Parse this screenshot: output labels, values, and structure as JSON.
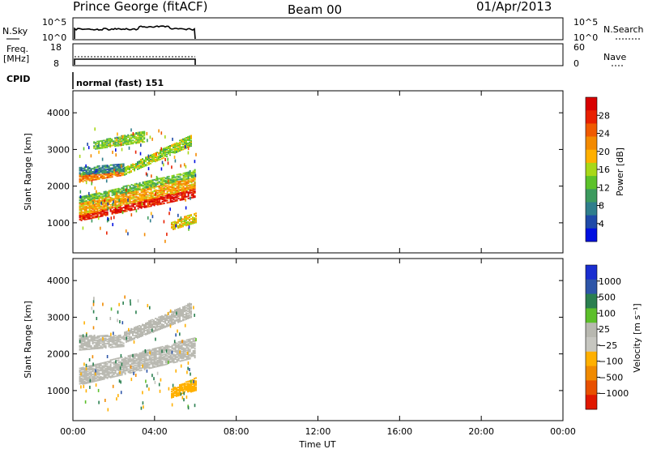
{
  "header": {
    "station": "Prince George (fitACF)",
    "beam": "Beam 00",
    "date": "01/Apr/2013"
  },
  "status_panel": {
    "left_labels": {
      "nsky": "N.Sky",
      "freq_top": "Freq.",
      "freq_unit": "[MHz]",
      "cpid": "CPID"
    },
    "right_labels": {
      "nsearch": "N.Search",
      "nave": "Nave"
    },
    "nsky_ticks": [
      "10^5",
      "10^0"
    ],
    "nsearch_ticks": [
      "10^5",
      "10^0"
    ],
    "freq_ticks": [
      "18",
      "8"
    ],
    "nave_ticks": [
      "60",
      "0"
    ],
    "cpid_text": "normal (fast) 151"
  },
  "colors": {
    "power_scale": [
      "#0010e0",
      "#1f4aa8",
      "#2f7e8c",
      "#3c9a5e",
      "#5cc22a",
      "#a8d818",
      "#ffb000",
      "#f38a00",
      "#f05a00",
      "#e82000",
      "#d80000"
    ],
    "velocity_scale": [
      "#1a2ed0",
      "#2d55a8",
      "#2a7f4f",
      "#5cbf2a",
      "#b8b8b0",
      "#c6c6c0",
      "#ffb000",
      "#f08a00",
      "#e85000",
      "#e01800"
    ],
    "bg": "#ffffff"
  },
  "chart_data": [
    {
      "type": "heatmap",
      "name": "power-panel",
      "xlabel": "",
      "ylabel": "Slant Range [km]",
      "y_ticks": [
        "1000",
        "2000",
        "3000",
        "4000"
      ],
      "y_tick_values": [
        1000,
        2000,
        3000,
        4000
      ],
      "ylim": [
        180,
        4600
      ],
      "xlim": [
        0,
        24
      ],
      "colorbar_label": "Power [dB]",
      "colorbar_ticks": [
        "4",
        "8",
        "12",
        "16",
        "20",
        "24",
        "28"
      ],
      "colorbar_range": [
        0,
        32
      ],
      "bands": [
        {
          "x0": 0.3,
          "x1": 6.0,
          "y0a": 1050,
          "y1a": 1200,
          "y0b": 1700,
          "y1b": 1950,
          "level": 29
        },
        {
          "x0": 0.3,
          "x1": 6.0,
          "y0a": 1200,
          "y1a": 1550,
          "y0b": 1950,
          "y1b": 2250,
          "level": 20
        },
        {
          "x0": 0.3,
          "x1": 6.0,
          "y0a": 1550,
          "y1a": 1700,
          "y0b": 2250,
          "y1b": 2450,
          "level": 13
        },
        {
          "x0": 0.3,
          "x1": 2.5,
          "y0a": 2100,
          "y1a": 2300,
          "y0b": 2300,
          "y1b": 2400,
          "level": 23
        },
        {
          "x0": 2.5,
          "x1": 5.8,
          "y0a": 2300,
          "y1a": 2500,
          "y0b": 3100,
          "y1b": 3400,
          "level": 15
        },
        {
          "x0": 0.3,
          "x1": 2.5,
          "y0a": 2300,
          "y1a": 2500,
          "y0b": 2400,
          "y1b": 2600,
          "level": 8
        },
        {
          "x0": 1.0,
          "x1": 3.5,
          "y0a": 3000,
          "y1a": 3200,
          "y0b": 3200,
          "y1b": 3500,
          "level": 14
        },
        {
          "x0": 4.8,
          "x1": 6.0,
          "y0a": 800,
          "y1a": 1000,
          "y0b": 1000,
          "y1b": 1300,
          "level": 18
        }
      ]
    },
    {
      "type": "heatmap",
      "name": "velocity-panel",
      "xlabel": "Time UT",
      "ylabel": "Slant Range [km]",
      "x_ticks": [
        "00:00",
        "04:00",
        "08:00",
        "12:00",
        "16:00",
        "20:00",
        "00:00"
      ],
      "x_tick_values": [
        0,
        4,
        8,
        12,
        16,
        20,
        24
      ],
      "y_ticks": [
        "1000",
        "2000",
        "3000",
        "4000"
      ],
      "y_tick_values": [
        1000,
        2000,
        3000,
        4000
      ],
      "ylim": [
        180,
        4600
      ],
      "xlim": [
        0,
        24
      ],
      "colorbar_label": "Velocity [m s⁻¹]",
      "colorbar_ticks": [
        "1000",
        "500",
        "100",
        "25",
        "−25",
        "−100",
        "−500",
        "−1000"
      ],
      "bands": [
        {
          "x0": 0.3,
          "x1": 6.0,
          "y0a": 1150,
          "y1a": 1600,
          "y0b": 1900,
          "y1b": 2450,
          "level": 0
        },
        {
          "x0": 0.3,
          "x1": 2.5,
          "y0a": 2100,
          "y1a": 2500,
          "y0b": 2200,
          "y1b": 2500,
          "level": 0
        },
        {
          "x0": 2.5,
          "x1": 5.8,
          "y0a": 2300,
          "y1a": 2600,
          "y0b": 3000,
          "y1b": 3400,
          "level": 0
        },
        {
          "x0": 4.8,
          "x1": 6.0,
          "y0a": 800,
          "y1a": 1050,
          "y0b": 1000,
          "y1b": 1350,
          "level": -300
        }
      ]
    }
  ]
}
